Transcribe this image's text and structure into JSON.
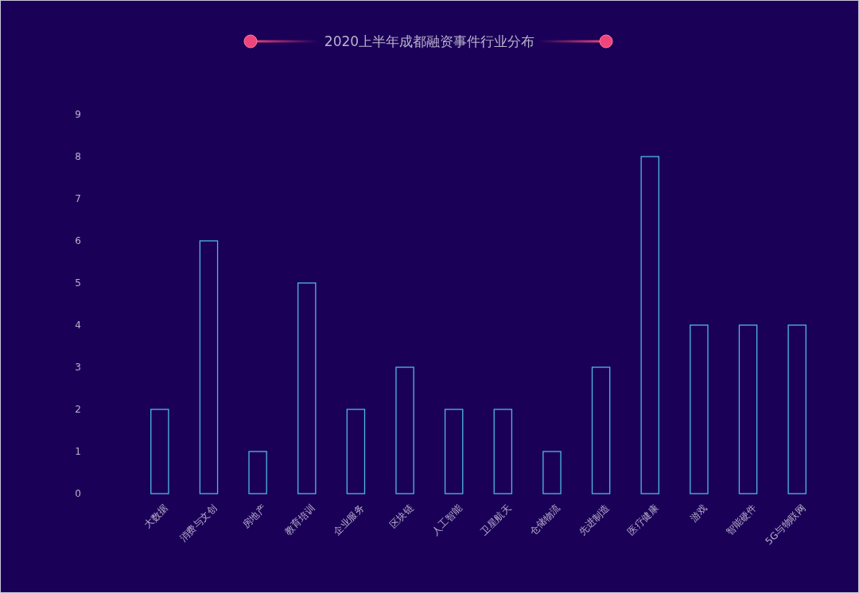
{
  "chart_data": {
    "type": "bar",
    "title": "2020上半年成都融资事件行业分布",
    "categories": [
      "大数据",
      "消费与文创",
      "房地产",
      "教育培训",
      "企业服务",
      "区块链",
      "人工智能",
      "卫星航天",
      "仓储物流",
      "先进制造",
      "医疗健康",
      "游戏",
      "智能硬件",
      "5G与物联网"
    ],
    "values": [
      2,
      6,
      1,
      5,
      2,
      3,
      2,
      2,
      1,
      3,
      8,
      4,
      4,
      4
    ],
    "color": "#4fb8e8",
    "ylim": [
      0,
      9
    ],
    "yticks": [
      0,
      1,
      2,
      3,
      4,
      5,
      6,
      7,
      8,
      9
    ],
    "grid": false
  }
}
